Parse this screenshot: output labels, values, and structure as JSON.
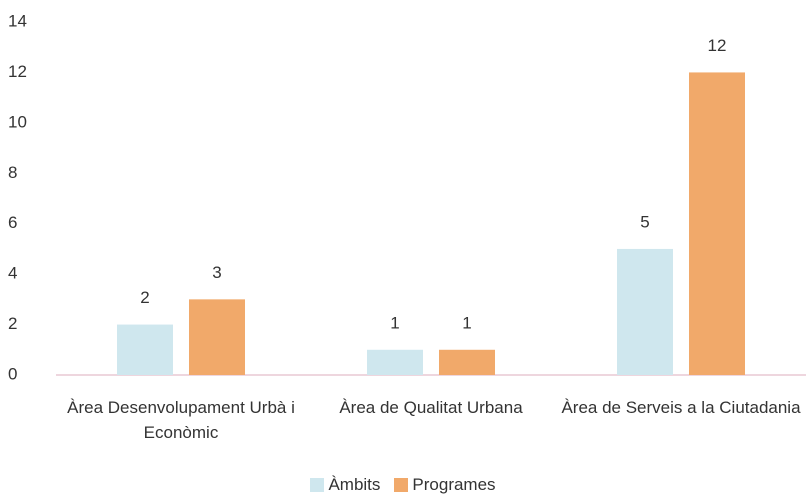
{
  "chart_data": {
    "type": "bar",
    "categories": [
      "Àrea Desenvolupament Urbà i Econòmic",
      "Àrea de Qualitat Urbana",
      "Àrea de Serveis a la Ciutadania"
    ],
    "series": [
      {
        "name": "Àmbits",
        "color": "#cfe7ee",
        "values": [
          2,
          1,
          5
        ]
      },
      {
        "name": "Programes",
        "color": "#f1a96a",
        "values": [
          3,
          1,
          12
        ]
      }
    ],
    "ylim": [
      0,
      14
    ],
    "yticks": [
      0,
      2,
      4,
      6,
      8,
      10,
      12,
      14
    ],
    "grid": false,
    "legend": "bottom"
  }
}
